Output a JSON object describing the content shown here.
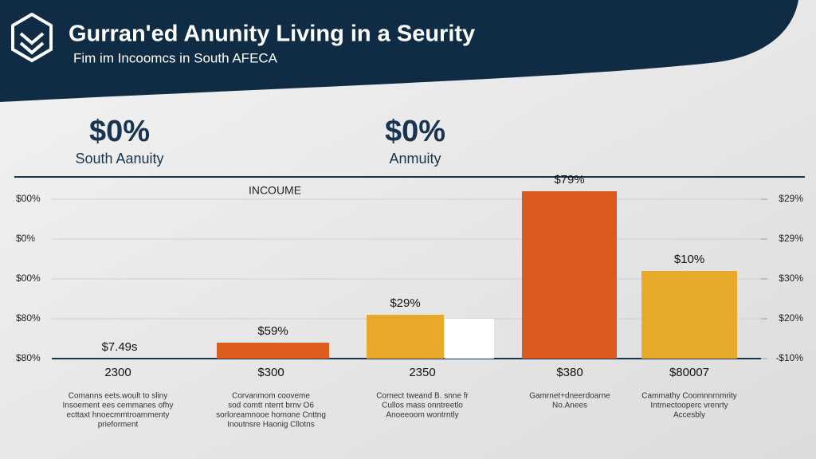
{
  "header": {
    "title": "Gurran'ed Anunity Living in a Seurity",
    "subtitle": "Fim im Incoomcs in South AFECA"
  },
  "stats": [
    {
      "value": "$0%",
      "label": "South Aanuity"
    },
    {
      "value": "$0%",
      "label": "Anmuity"
    }
  ],
  "chart_data": {
    "type": "bar",
    "title": "INCOUME",
    "categories": [
      "2300",
      "$300",
      "2350",
      "$380",
      "$80007"
    ],
    "series": [
      {
        "values": [
          0,
          0.4,
          1.1,
          4.2,
          2.2
        ],
        "colors": [
          "#e2681f",
          "#de5d1f",
          "#e8a92a",
          "#dd5a1e",
          "#e8aa2a"
        ],
        "value_labels": [
          "$7.49s",
          "$59%",
          "$29%",
          "$79%",
          "$10%"
        ]
      },
      {
        "values": [
          null,
          null,
          1.0,
          null,
          null
        ],
        "color": "#ffffff"
      }
    ],
    "ylim": [
      0,
      4.7
    ],
    "yticks": [
      {
        "value": 0,
        "label": "$80%"
      },
      {
        "value": 1,
        "label": "$80%"
      },
      {
        "value": 2,
        "label": "$00%"
      },
      {
        "value": 3,
        "label": "$0%"
      },
      {
        "value": 4,
        "label": "$00%"
      }
    ],
    "y2lim": [
      0,
      4.7
    ],
    "y2ticks": [
      {
        "value": 0,
        "label": "-$10%"
      },
      {
        "value": 1,
        "label": "$20%"
      },
      {
        "value": 2,
        "label": "$30%"
      },
      {
        "value": 3,
        "label": "$29%"
      },
      {
        "value": 4,
        "label": "$29%"
      }
    ],
    "grid": true,
    "notes": [
      [
        "Comanns eets.woult to sliny",
        "Insoement ees cemmanes ofhy",
        "ecttaxt hnoecmmtroammenty",
        "prieforment"
      ],
      [
        "Corvanmom cooveme",
        "sod comtt nterrt brnv O6",
        "sorloreamnooe homone Cnttng",
        "Inoutnsre Haonig Cllotns"
      ],
      [
        "Cornect tweand B. snne fr",
        "Cullos mass onntreetlo",
        "Anoeeoom wontrntly"
      ],
      [
        "Gamrnet+dneerdoarne",
        "No.Anees"
      ],
      [
        "Cammathy Coomnnrnmrity",
        "Intrnectooperc vrenrty",
        "Accesbly"
      ]
    ]
  }
}
